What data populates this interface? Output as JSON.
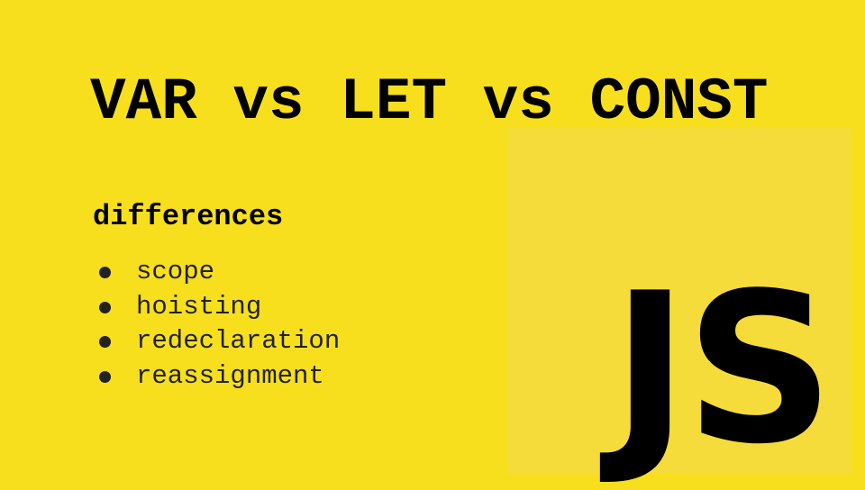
{
  "slide": {
    "title": "VAR vs LET vs CONST",
    "subtitle": "differences",
    "bullets": [
      "scope",
      "hoisting",
      "redeclaration",
      "reassignment"
    ],
    "logo_text": "JS",
    "colors": {
      "background": "#f7df1e",
      "logo_box": "#f6dc3a",
      "text": "#000000"
    }
  }
}
